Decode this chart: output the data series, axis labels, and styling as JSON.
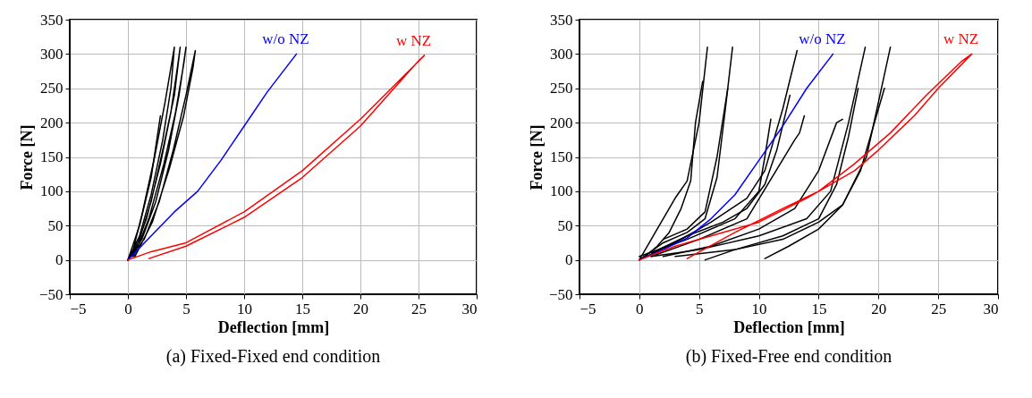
{
  "chart_data": [
    {
      "type": "line",
      "title": "(a) Fixed-Fixed end condition",
      "xlabel": "Deflection [mm]",
      "ylabel": "Force [N]",
      "xlim": [
        -5,
        30
      ],
      "ylim": [
        -50,
        350
      ],
      "xticks": [
        -5,
        0,
        5,
        10,
        15,
        20,
        25,
        30
      ],
      "yticks": [
        -50,
        0,
        50,
        100,
        150,
        200,
        250,
        300,
        350
      ],
      "grid": true,
      "series": [
        {
          "color": "#000000",
          "x": [
            0,
            1,
            2,
            3,
            3.7,
            4,
            3.8,
            3.2,
            2.3,
            1.2,
            0.3
          ],
          "values": [
            0,
            35,
            95,
            175,
            250,
            310,
            290,
            230,
            150,
            65,
            5
          ]
        },
        {
          "color": "#000000",
          "x": [
            0,
            1,
            2,
            3,
            4,
            4.5,
            4.3,
            3.7,
            2.8,
            1.6,
            0.4
          ],
          "values": [
            0,
            30,
            85,
            160,
            240,
            310,
            285,
            215,
            140,
            60,
            5
          ]
        },
        {
          "color": "#000000",
          "x": [
            0,
            1.2,
            2.4,
            3.5,
            4.4,
            5,
            4.8,
            4.1,
            3.1,
            1.8,
            0.5
          ],
          "values": [
            0,
            30,
            85,
            160,
            240,
            310,
            285,
            215,
            140,
            60,
            5
          ]
        },
        {
          "color": "#000000",
          "x": [
            0,
            1.4,
            2.7,
            3.9,
            5,
            5.8,
            5.6,
            4.8,
            3.6,
            2.1,
            0.6
          ],
          "values": [
            0,
            30,
            85,
            160,
            240,
            305,
            280,
            210,
            135,
            55,
            5
          ]
        },
        {
          "color": "#000000",
          "x": [
            0,
            1,
            2,
            2.8
          ],
          "values": [
            0,
            50,
            120,
            210
          ]
        },
        {
          "name": "w/o NZ",
          "color": "#0000ff",
          "x": [
            0,
            2,
            4,
            6,
            8,
            10,
            12,
            14.5
          ],
          "values": [
            0,
            35,
            70,
            100,
            145,
            195,
            245,
            300
          ]
        },
        {
          "name": "w NZ",
          "color": "#ff0000",
          "x": [
            0,
            2,
            5,
            10,
            15,
            20,
            25.5,
            25,
            20,
            15,
            10,
            5,
            1.8
          ],
          "values": [
            0,
            12,
            25,
            70,
            130,
            205,
            298,
            290,
            195,
            120,
            62,
            20,
            2
          ]
        }
      ]
    },
    {
      "type": "line",
      "title": "(b) Fixed-Free end condition",
      "xlabel": "Deflection [mm]",
      "ylabel": "Force [N]",
      "xlim": [
        -5,
        30
      ],
      "ylim": [
        -50,
        350
      ],
      "xticks": [
        -5,
        0,
        5,
        10,
        15,
        20,
        25,
        30
      ],
      "yticks": [
        -50,
        0,
        50,
        100,
        150,
        200,
        250,
        300,
        350
      ],
      "grid": true,
      "series": [
        {
          "color": "#000000",
          "x": [
            0,
            1,
            2,
            3,
            4,
            5,
            5.7
          ],
          "values": [
            0,
            30,
            60,
            90,
            115,
            200,
            310
          ]
        },
        {
          "color": "#000000",
          "x": [
            0.5,
            1.5,
            2.5,
            3.5,
            4.3,
            4.7,
            5.3
          ],
          "values": [
            5,
            20,
            40,
            75,
            115,
            200,
            260
          ]
        },
        {
          "color": "#000000",
          "x": [
            0,
            2,
            4,
            5.5,
            6.5,
            7.2,
            7.8
          ],
          "values": [
            0,
            25,
            40,
            60,
            120,
            220,
            310
          ]
        },
        {
          "color": "#000000",
          "x": [
            2,
            4,
            5.5,
            6.5,
            7.4
          ],
          "values": [
            30,
            45,
            70,
            150,
            250
          ]
        },
        {
          "color": "#000000",
          "x": [
            0,
            3,
            6,
            9,
            10.5,
            12,
            13.2
          ],
          "values": [
            0,
            25,
            55,
            90,
            130,
            220,
            305
          ]
        },
        {
          "color": "#000000",
          "x": [
            1,
            4,
            7,
            9,
            10.5,
            11.5,
            12.6
          ],
          "values": [
            10,
            35,
            55,
            75,
            110,
            160,
            240
          ]
        },
        {
          "color": "#000000",
          "x": [
            0,
            4,
            8,
            10,
            10.5,
            11
          ],
          "values": [
            5,
            30,
            60,
            100,
            150,
            205
          ]
        },
        {
          "color": "#000000",
          "x": [
            1,
            5,
            9,
            13,
            13.4,
            13.8
          ],
          "values": [
            5,
            30,
            60,
            175,
            185,
            210
          ]
        },
        {
          "color": "#000000",
          "x": [
            1,
            5,
            10,
            14,
            16,
            17.5,
            18.9
          ],
          "values": [
            5,
            15,
            35,
            60,
            100,
            200,
            310
          ]
        },
        {
          "color": "#000000",
          "x": [
            5.5,
            8,
            12,
            15,
            16.5,
            17.5,
            18.3
          ],
          "values": [
            0,
            15,
            35,
            60,
            110,
            180,
            250
          ]
        },
        {
          "color": "#000000",
          "x": [
            3,
            8,
            12,
            15,
            17,
            19,
            20,
            21
          ],
          "values": [
            5,
            15,
            30,
            55,
            80,
            150,
            230,
            310
          ]
        },
        {
          "color": "#000000",
          "x": [
            10.5,
            12.5,
            15,
            17,
            18.5,
            19.5,
            20.5
          ],
          "values": [
            2,
            20,
            45,
            80,
            130,
            190,
            250
          ]
        },
        {
          "color": "#000000",
          "x": [
            2,
            6,
            10,
            13,
            15,
            16.5,
            17
          ],
          "values": [
            5,
            20,
            45,
            75,
            130,
            200,
            205
          ]
        },
        {
          "name": "w/o NZ",
          "color": "#0000ff",
          "x": [
            0,
            2,
            4,
            6,
            8,
            10,
            12,
            14,
            16.2
          ],
          "values": [
            0,
            15,
            32,
            60,
            95,
            145,
            195,
            250,
            300
          ]
        },
        {
          "name": "w NZ",
          "color": "#ff0000",
          "x": [
            0,
            3,
            6,
            10,
            14,
            18,
            20,
            23,
            25,
            27.8,
            27,
            24,
            21,
            18,
            15,
            12,
            8,
            4
          ],
          "values": [
            0,
            20,
            35,
            55,
            90,
            130,
            160,
            210,
            250,
            300,
            290,
            240,
            185,
            140,
            100,
            75,
            40,
            2
          ]
        }
      ]
    }
  ]
}
